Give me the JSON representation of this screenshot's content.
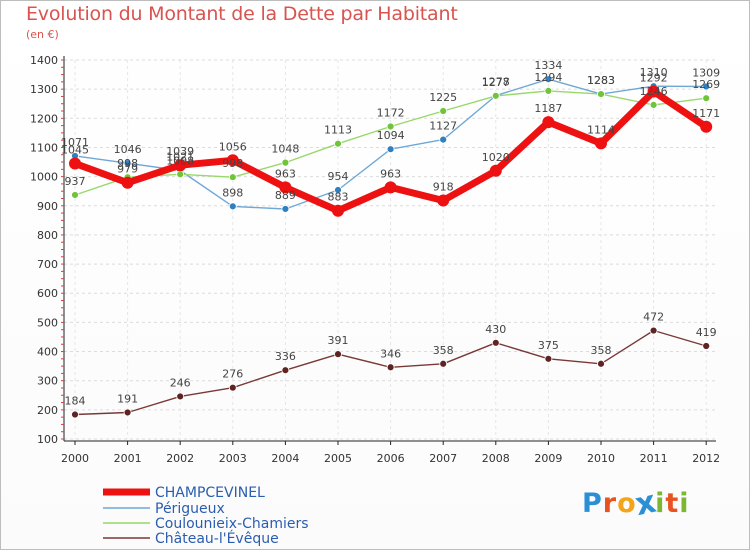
{
  "header": {
    "title": "Evolution du Montant de la Dette par Habitant",
    "subtitle": "(en €)"
  },
  "logo": {
    "text": "Proxiti",
    "letters": [
      "P",
      "r",
      "o",
      "x",
      "i",
      "t",
      "i"
    ],
    "colors": [
      "#2b8fd6",
      "#e8531f",
      "#f2a51a",
      "#2b8fd6",
      "#7cb82f",
      "#e8531f",
      "#7cb82f"
    ]
  },
  "chart_data": {
    "type": "line",
    "title": "Evolution du Montant de la Dette par Habitant",
    "subtitle": "(en €)",
    "xlabel": "",
    "ylabel": "",
    "categories": [
      "2000",
      "2001",
      "2002",
      "2003",
      "2004",
      "2005",
      "2006",
      "2007",
      "2008",
      "2009",
      "2010",
      "2011",
      "2012"
    ],
    "ylim": [
      100,
      1400
    ],
    "yticks": [
      100,
      200,
      300,
      400,
      500,
      600,
      700,
      800,
      900,
      1000,
      1100,
      1200,
      1300,
      1400
    ],
    "grid": true,
    "legend_position": "bottom-left",
    "series": [
      {
        "name": "Périgueux",
        "color": "#6fa8d6",
        "marker_color": "#2f7fc1",
        "line_width": 1.4,
        "marker_size": 3.5,
        "values": [
          1071,
          1046,
          1021,
          898,
          889,
          954,
          1094,
          1127,
          1278,
          1334,
          1283,
          1310,
          1309
        ]
      },
      {
        "name": "Coulounieix-Chamiers",
        "color": "#98d86a",
        "marker_color": "#6fc43a",
        "line_width": 1.4,
        "marker_size": 3.5,
        "values": [
          937,
          998,
          1008,
          998,
          1048,
          1113,
          1172,
          1225,
          1277,
          1294,
          1283,
          1246,
          1269
        ]
      },
      {
        "name": "Château-l'Évêque",
        "color": "#7a3838",
        "marker_color": "#5e2424",
        "line_width": 1.4,
        "marker_size": 3.5,
        "values": [
          184,
          191,
          246,
          276,
          336,
          391,
          346,
          358,
          430,
          375,
          358,
          472,
          419
        ]
      },
      {
        "name": "CHAMPCEVINEL",
        "color": "#ee1111",
        "marker_color": "#ee1111",
        "line_width": 7,
        "marker_size": 6,
        "values": [
          1045,
          979,
          1039,
          1056,
          963,
          883,
          963,
          918,
          1020,
          1187,
          1114,
          1292,
          1171
        ]
      }
    ],
    "legend_order": [
      "CHAMPCEVINEL",
      "Périgueux",
      "Coulounieix-Chamiers",
      "Château-l'Évêque"
    ]
  }
}
